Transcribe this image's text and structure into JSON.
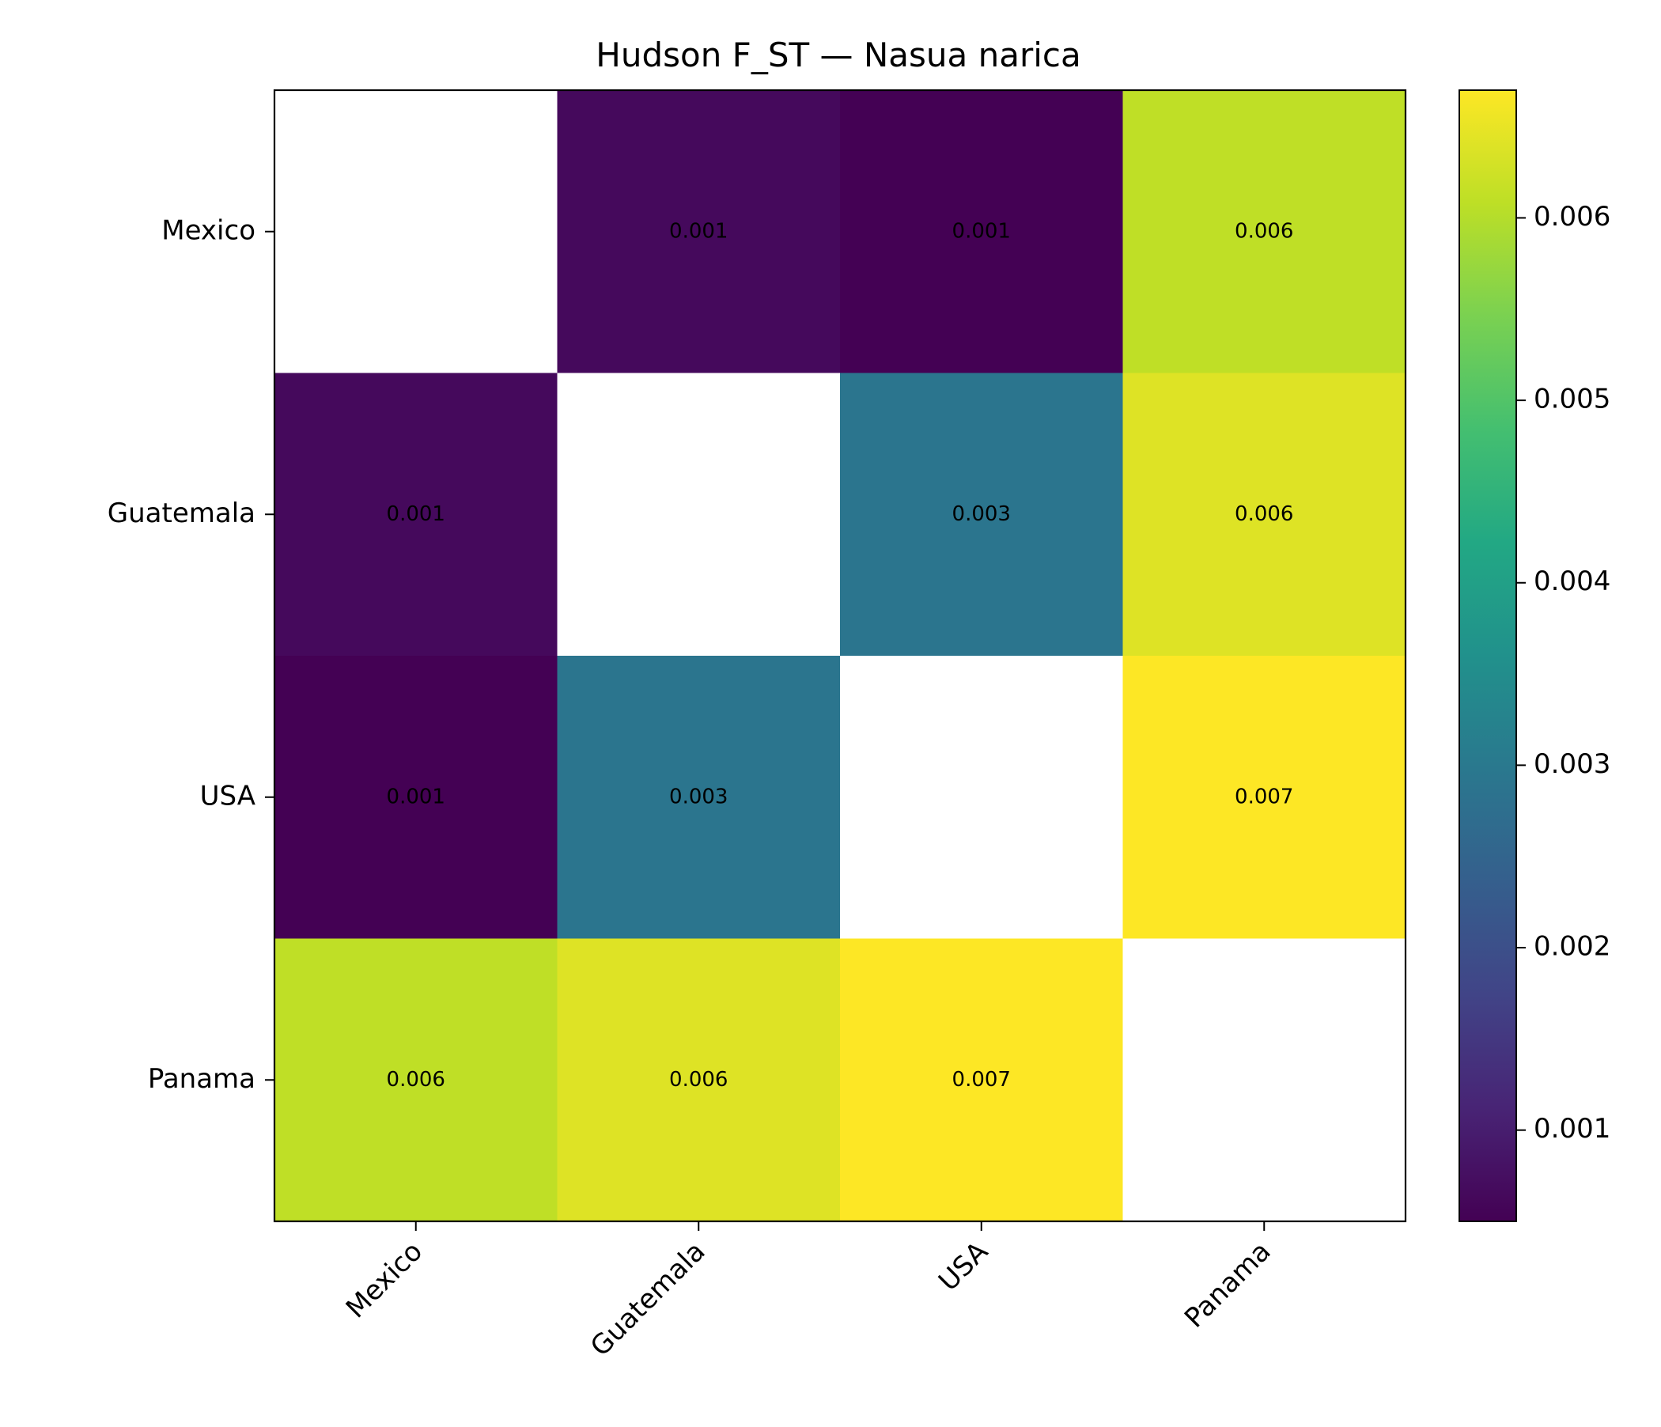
{
  "chart_data": {
    "type": "heatmap",
    "title": "Hudson F_ST — Nasua narica",
    "rows": [
      "Mexico",
      "Guatemala",
      "USA",
      "Panama"
    ],
    "columns": [
      "Mexico",
      "Guatemala",
      "USA",
      "Panama"
    ],
    "values": [
      [
        null,
        0.00065,
        0.0005,
        0.0061
      ],
      [
        0.00065,
        null,
        0.0029,
        0.0064
      ],
      [
        0.0005,
        0.0029,
        null,
        0.0067
      ],
      [
        0.0061,
        0.0064,
        0.0067,
        null
      ]
    ],
    "cell_labels": [
      [
        "",
        "0.001",
        "0.001",
        "0.006"
      ],
      [
        "0.001",
        "",
        "0.003",
        "0.006"
      ],
      [
        "0.001",
        "0.003",
        "",
        "0.007"
      ],
      [
        "0.006",
        "0.006",
        "0.007",
        ""
      ]
    ],
    "colormap": "viridis",
    "diagonal_color": "#ffffff",
    "colorbar": {
      "range": [
        0.0005,
        0.0067
      ],
      "ticks": [
        0.001,
        0.002,
        0.003,
        0.004,
        0.005,
        0.006
      ],
      "tick_labels": [
        "0.001",
        "0.002",
        "0.003",
        "0.004",
        "0.005",
        "0.006"
      ]
    }
  }
}
